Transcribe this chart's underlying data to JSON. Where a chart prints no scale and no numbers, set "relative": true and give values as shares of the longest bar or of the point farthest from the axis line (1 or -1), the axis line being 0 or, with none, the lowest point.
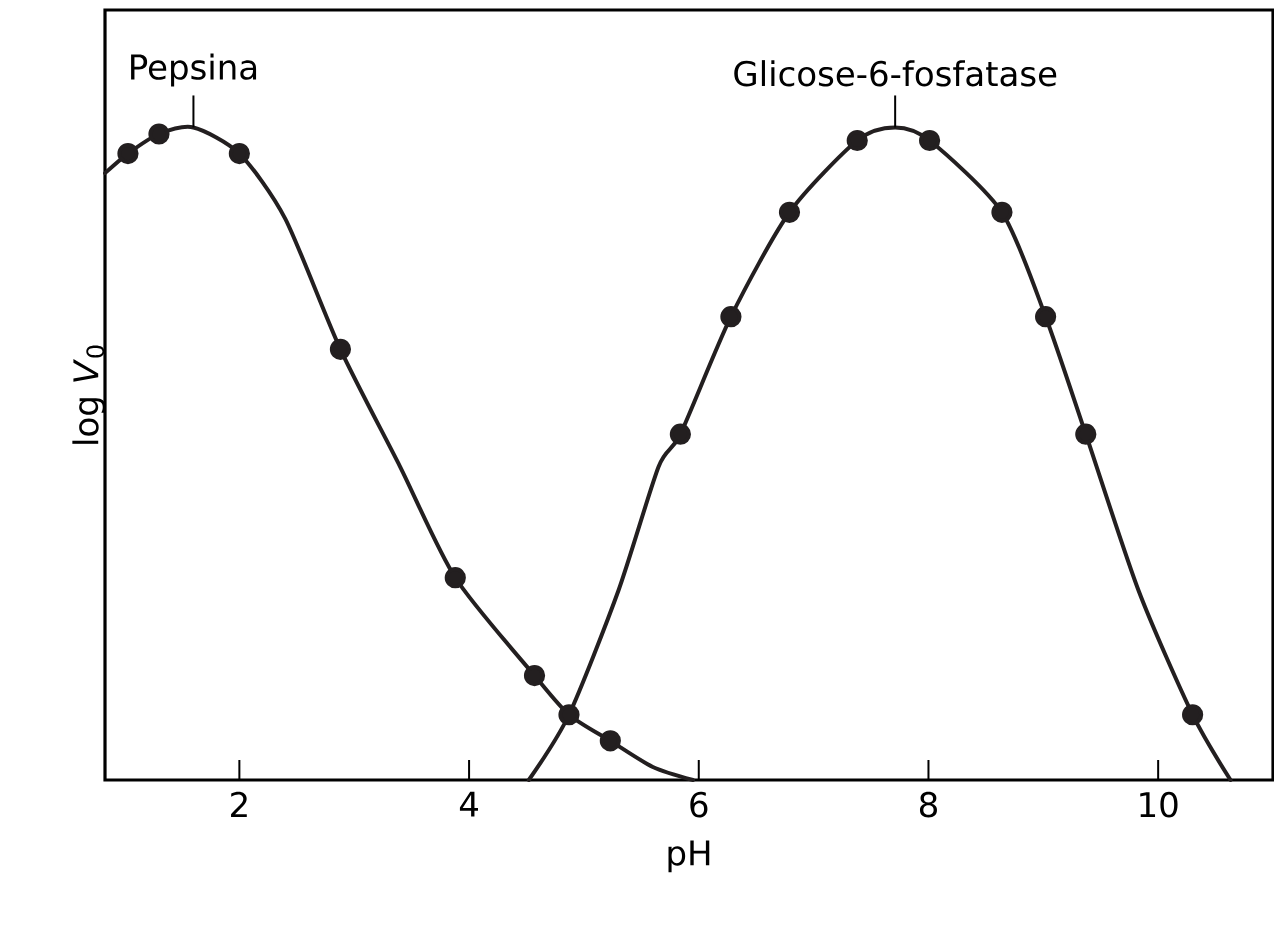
{
  "chart_data": {
    "type": "line",
    "relative": true,
    "xlabel": "pH",
    "ylabel": "log *V*$_{0}$",
    "xlim": [
      0.83,
      11.0
    ],
    "xticks": [
      2,
      4,
      6,
      8,
      10
    ],
    "grid": false,
    "series": [
      {
        "color": "#231f20",
        "marker": "none",
        "x": [
          0.83,
          1.03,
          1.3,
          1.6,
          2.0,
          2.4,
          2.88,
          3.4,
          3.88,
          4.57,
          4.87,
          5.23,
          5.6,
          5.95
        ],
        "values": [
          0.93,
          0.96,
          0.99,
          1.0,
          0.96,
          0.86,
          0.66,
          0.48,
          0.31,
          0.16,
          0.1,
          0.06,
          0.02,
          0
        ]
      },
      {
        "type": "scatter",
        "color": "#231f20",
        "marker": "circle",
        "x": [
          1.03,
          1.3,
          2.0,
          2.88,
          3.88,
          4.57,
          4.87,
          5.23
        ],
        "values": [
          0.96,
          0.99,
          0.96,
          0.66,
          0.31,
          0.16,
          0.1,
          0.06
        ]
      },
      {
        "color": "#231f20",
        "marker": "none",
        "x": [
          4.52,
          4.87,
          5.3,
          5.65,
          5.84,
          6.28,
          6.79,
          7.38,
          7.71,
          8.01,
          8.64,
          9.02,
          9.37,
          9.83,
          10.3,
          10.63
        ],
        "values": [
          0,
          0.1,
          0.29,
          0.48,
          0.53,
          0.71,
          0.87,
          0.98,
          1.0,
          0.98,
          0.87,
          0.71,
          0.53,
          0.29,
          0.1,
          0
        ]
      },
      {
        "type": "scatter",
        "color": "#231f20",
        "marker": "circle",
        "x": [
          5.84,
          6.28,
          6.79,
          7.38,
          8.01,
          8.64,
          9.02,
          9.37,
          10.3
        ],
        "values": [
          0.53,
          0.71,
          0.87,
          0.98,
          0.98,
          0.87,
          0.71,
          0.53,
          0.1
        ]
      }
    ],
    "annotations": [
      {
        "text": "Pepsina",
        "x": 1.6,
        "y": 1.0
      },
      {
        "text": "Glicose-6-fosfatase",
        "x": 7.71,
        "y": 1.0
      }
    ]
  }
}
